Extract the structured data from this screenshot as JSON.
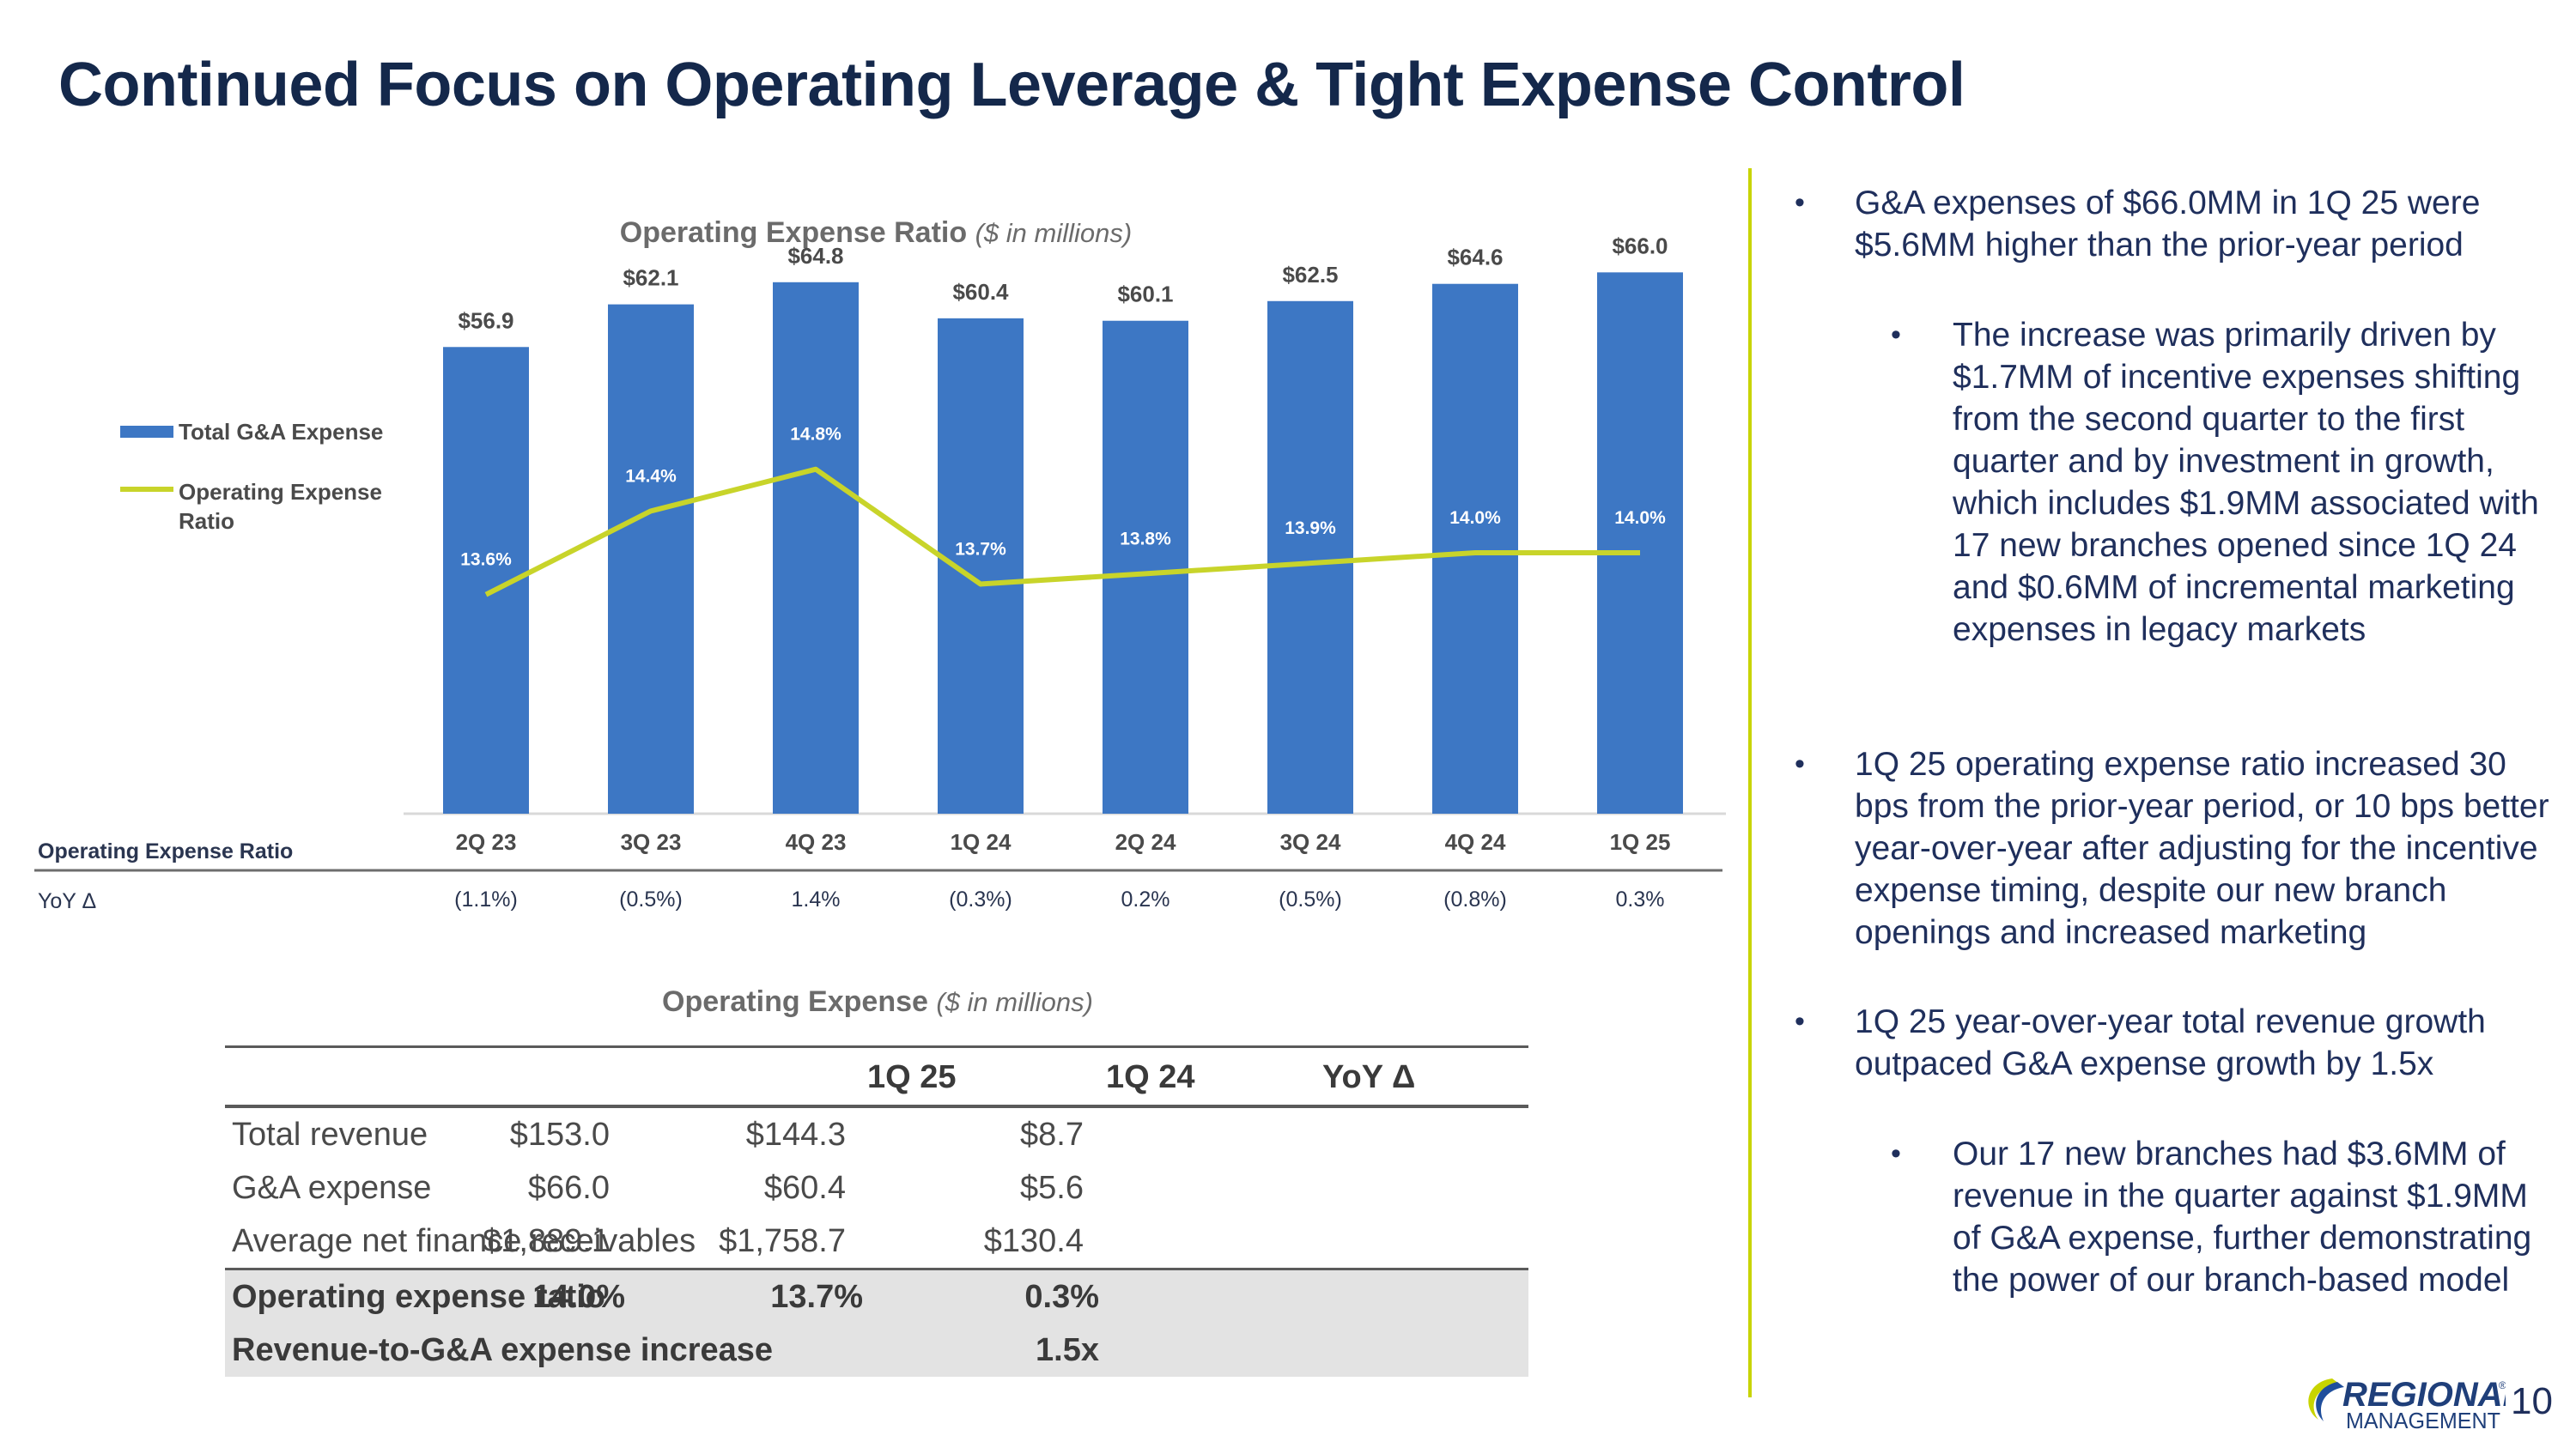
{
  "title": "Continued Focus on Operating Leverage & Tight Expense Control",
  "chart_data": {
    "type": "bar",
    "title": "Operating Expense Ratio",
    "subtitle": "($ in millions)",
    "categories": [
      "2Q 23",
      "3Q 23",
      "4Q 23",
      "1Q 24",
      "2Q 24",
      "3Q 24",
      "4Q 24",
      "1Q 25"
    ],
    "series": [
      {
        "name": "Total G&A Expense",
        "kind": "bar",
        "color": "#3d77c4",
        "values": [
          56.9,
          62.1,
          64.8,
          60.4,
          60.1,
          62.5,
          64.6,
          66.0
        ],
        "labels": [
          "$56.9",
          "$62.1",
          "$64.8",
          "$60.4",
          "$60.1",
          "$62.5",
          "$64.6",
          "$66.0"
        ]
      },
      {
        "name": "Operating Expense Ratio",
        "kind": "line",
        "color": "#c8d42a",
        "values": [
          13.6,
          14.4,
          14.8,
          13.7,
          13.8,
          13.9,
          14.0,
          14.0
        ],
        "labels": [
          "13.6%",
          "14.4%",
          "14.8%",
          "13.7%",
          "13.8%",
          "13.9%",
          "14.0%",
          "14.0%"
        ]
      }
    ],
    "legend": [
      "Total G&A Expense",
      "Operating Expense Ratio"
    ],
    "legend_position": "left",
    "ylim": [
      0,
      72
    ],
    "ratio_ylim": [
      11.5,
      16.5
    ],
    "grid": false,
    "table_row_label": "Operating Expense Ratio",
    "yoy_label": "YoY Δ",
    "yoy_values": [
      "(1.1%)",
      "(0.5%)",
      "1.4%",
      "(0.3%)",
      "0.2%",
      "(0.5%)",
      "(0.8%)",
      "0.3%"
    ]
  },
  "opex_table": {
    "title": "Operating Expense",
    "subtitle": "($ in millions)",
    "columns": [
      "1Q 25",
      "1Q 24",
      "YoY Δ"
    ],
    "rows": [
      {
        "label": "Total revenue",
        "values": [
          "$153.0",
          "$144.3",
          "$8.7"
        ]
      },
      {
        "label": "G&A expense",
        "values": [
          "$66.0",
          "$60.4",
          "$5.6"
        ]
      },
      {
        "label": "Average net finance receivables",
        "values": [
          "$1,889.1",
          "$1,758.7",
          "$130.4"
        ]
      },
      {
        "label": "Operating expense ratio",
        "values": [
          "14.0%",
          "13.7%",
          "0.3%"
        ]
      },
      {
        "label": "Revenue-to-G&A expense increase",
        "values": [
          "",
          "",
          "1.5x"
        ]
      }
    ]
  },
  "bullets": [
    "G&A expenses of $66.0MM in 1Q 25 were $5.6MM higher than the prior-year period",
    "The increase was primarily driven by $1.7MM of incentive expenses shifting from the second quarter to the first quarter and by investment in growth, which includes $1.9MM associated with 17 new branches opened since 1Q 24 and $0.6MM of incremental marketing expenses in legacy markets",
    "1Q 25 operating expense ratio increased 30 bps from the prior-year period, or 10 bps better year-over-year after adjusting for the incentive expense timing, despite our new branch openings and increased marketing",
    "1Q 25 year-over-year total revenue growth outpaced G&A expense growth by 1.5x",
    "Our 17 new branches had $3.6MM of revenue in the quarter against $1.9MM of G&A expense, further demonstrating the power of our branch-based model"
  ],
  "logo": {
    "line1": "REGIONAL",
    "mark": "®",
    "line2": "MANAGEMENT"
  },
  "page_number": "10",
  "colors": {
    "title": "#14284b",
    "bar": "#3d77c4",
    "line": "#c8d42a",
    "accent": "#c8d400"
  }
}
